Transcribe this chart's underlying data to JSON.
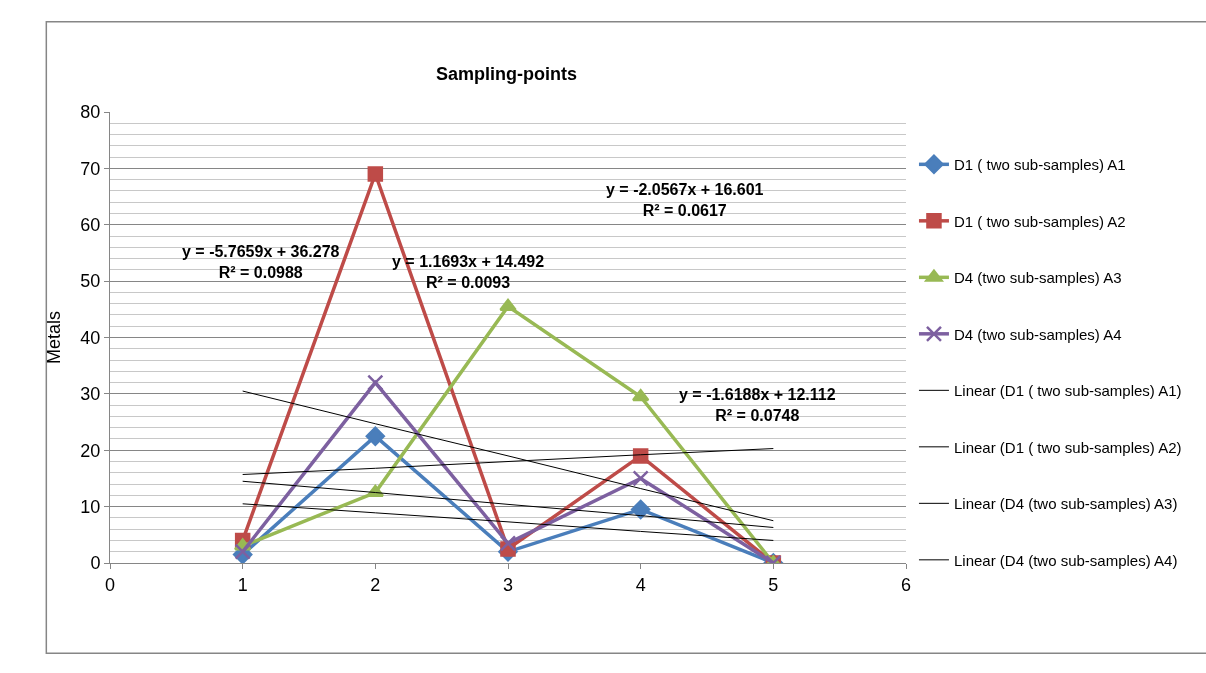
{
  "chart_data": {
    "type": "line",
    "title": "Sampling-points",
    "ylabel": "Metals",
    "x": [
      1,
      2,
      3,
      4,
      5
    ],
    "series": [
      {
        "name": "D1 ( two sub-samples) A1",
        "color": "#4a7ebb",
        "marker": "diamond",
        "values": [
          1.5,
          22.5,
          2,
          9.5,
          0
        ]
      },
      {
        "name": "D1 ( two sub-samples) A2",
        "color": "#be4b48",
        "marker": "square",
        "values": [
          4,
          69,
          2.5,
          19,
          0
        ]
      },
      {
        "name": "D4 (two sub-samples) A3",
        "color": "#98b954",
        "marker": "triangle",
        "values": [
          3,
          12.5,
          45.5,
          29.5,
          0
        ]
      },
      {
        "name": "D4 (two sub-samples) A4",
        "color": "#7d60a0",
        "marker": "cross",
        "values": [
          2,
          32,
          3.5,
          15,
          0
        ]
      },
      {
        "name": "Linear (D1 ( two sub-samples) A1)",
        "color": "#000000",
        "marker": "none",
        "values": [
          10.5,
          8.9,
          7.3,
          5.6,
          4.0
        ]
      },
      {
        "name": "Linear (D1 ( two sub-samples) A2)",
        "color": "#000000",
        "marker": "none",
        "values": [
          30.5,
          24.7,
          19.0,
          13.2,
          7.5
        ]
      },
      {
        "name": "Linear (D4 (two sub-samples) A3)",
        "color": "#000000",
        "marker": "none",
        "values": [
          15.7,
          16.8,
          18.0,
          19.2,
          20.3
        ]
      },
      {
        "name": "Linear (D4 (two sub-samples) A4)",
        "color": "#000000",
        "marker": "none",
        "values": [
          14.5,
          12.5,
          10.4,
          8.4,
          6.3
        ]
      }
    ],
    "xlim": [
      0,
      6
    ],
    "xticks": [
      0,
      1,
      2,
      3,
      4,
      5,
      6
    ],
    "ylim": [
      0,
      80
    ],
    "yticks": [
      0,
      10,
      20,
      30,
      40,
      50,
      60,
      70,
      80
    ],
    "grid": "y",
    "legend": "right",
    "annotations": [
      "y = -5.7659x + 36.278\nR² = 0.0988",
      "y = 1.1693x + 14.492\nR² = 0.0093",
      "y = -2.0567x + 16.601\nR² = 0.0617",
      "y = -1.6188x + 12.112\nR² = 0.0748"
    ]
  }
}
